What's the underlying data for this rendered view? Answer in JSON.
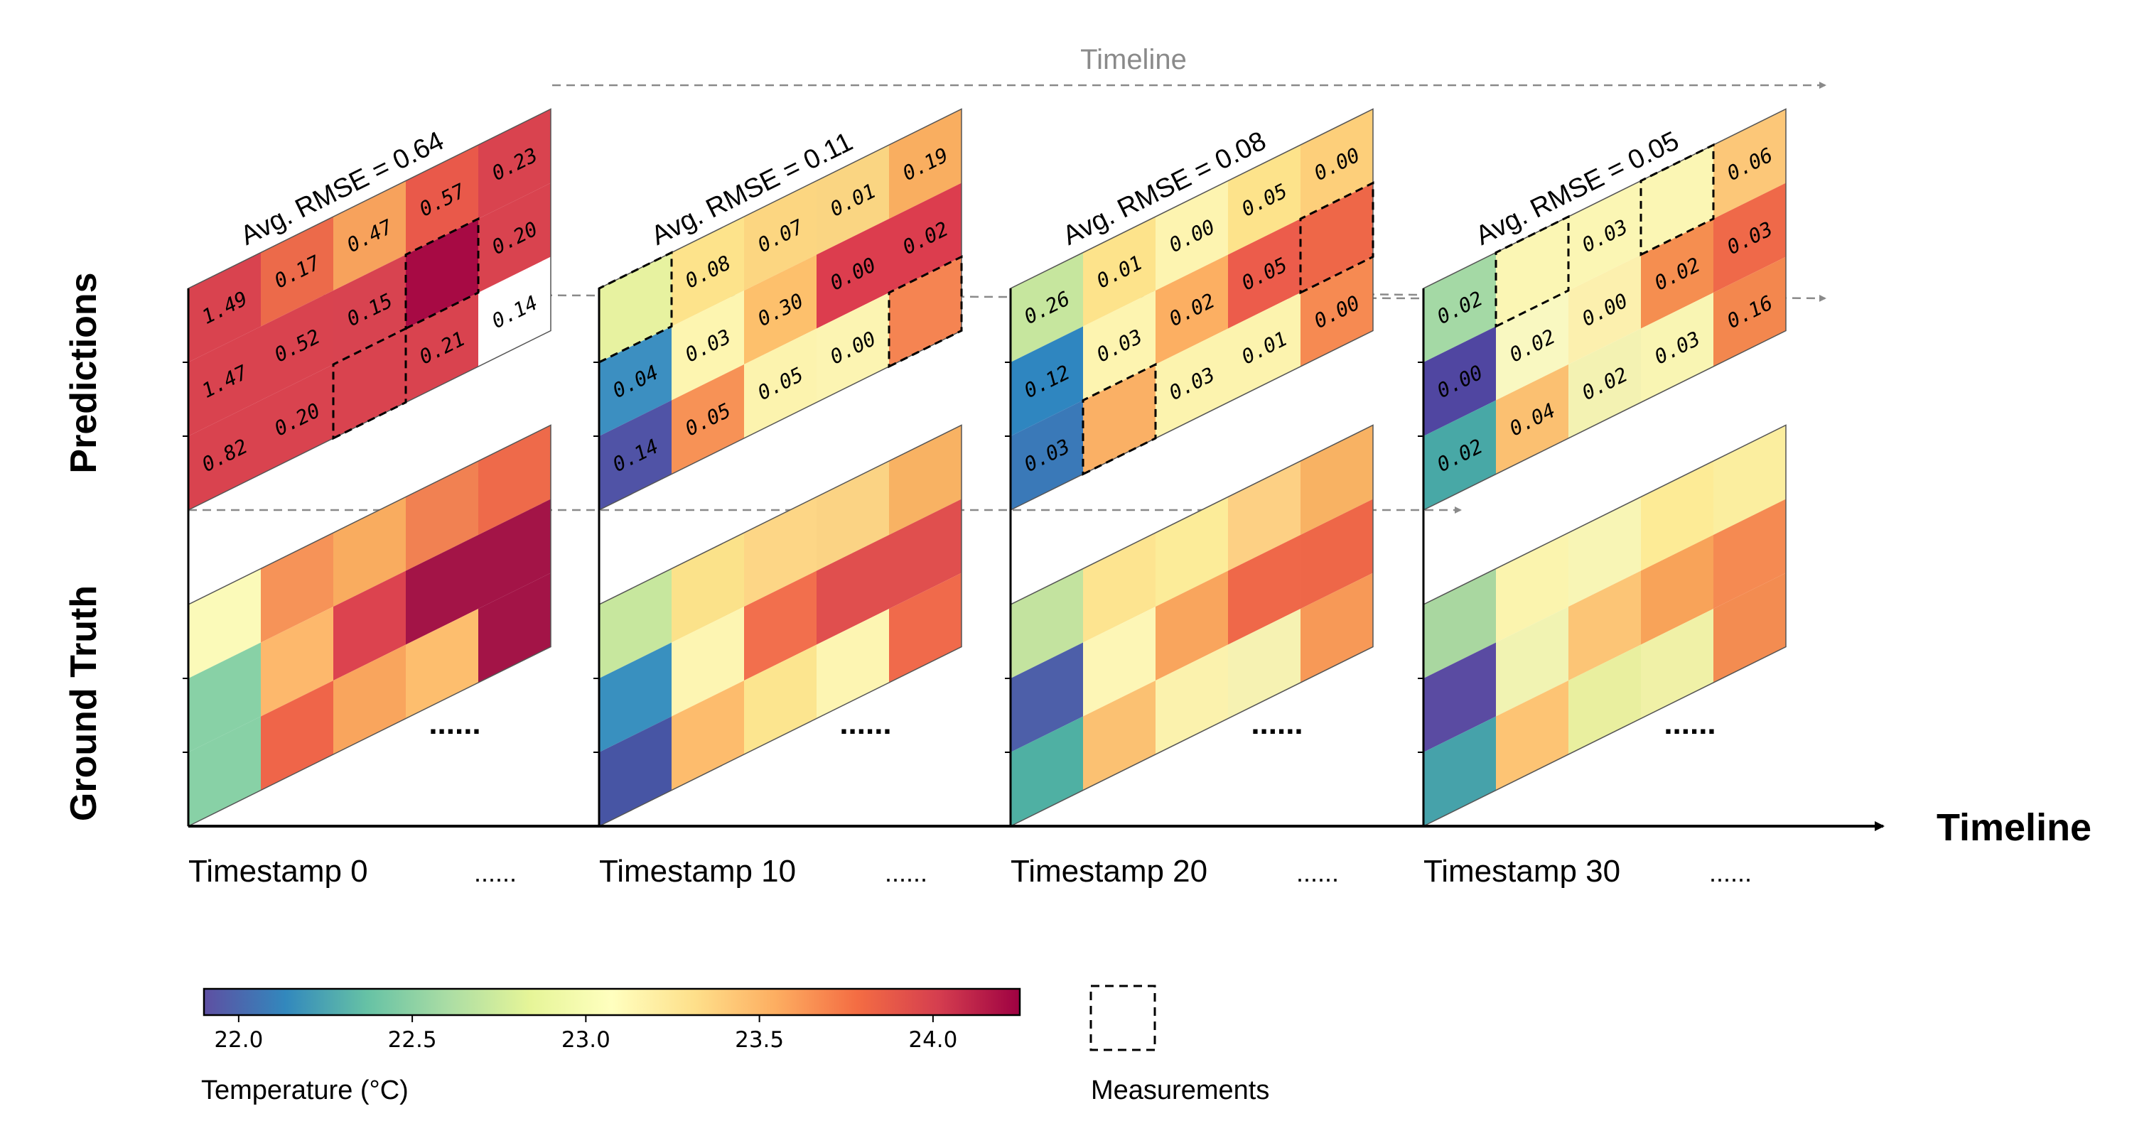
{
  "labels": {
    "predictions": "Predictions",
    "ground_truth": "Ground Truth",
    "timeline_main": "Timeline",
    "timeline_top": "Timeline",
    "ellipsis_gt": "......",
    "ellipsis_ts": "......",
    "colorbar_label": "Temperature (°C)",
    "measurements_label": "Measurements"
  },
  "colorbar": {
    "ticks": [
      "22.0",
      "22.5",
      "23.0",
      "23.5",
      "24.0"
    ],
    "tick_values": [
      22.0,
      22.5,
      23.0,
      23.5,
      24.0
    ],
    "min": 21.9,
    "max": 24.25,
    "colormap": [
      "#5e4fa2",
      "#3288bd",
      "#66c2a5",
      "#abdda4",
      "#e6f598",
      "#ffffbf",
      "#fee08b",
      "#fdae61",
      "#f46d43",
      "#d53e4f",
      "#9e0142"
    ]
  },
  "panels": [
    {
      "timestamp": "Timestamp 0",
      "rmse": "Avg. RMSE = 0.64",
      "pred_colors": [
        [
          "#d9434f",
          "#ec6a4a",
          "#f7a25c",
          "#e9594a",
          "#d9434f"
        ],
        [
          "#d9434f",
          "#d9434f",
          "#d84350",
          "#a70a44",
          "#d9434f"
        ],
        [
          "#d9434f",
          "#d9434f",
          "#d9434f",
          "#d9434f",
          null
        ]
      ],
      "pred_values": [
        [
          "1.49",
          "0.17",
          "0.47",
          "0.57",
          "0.23"
        ],
        [
          "1.47",
          "0.52",
          "0.15",
          "",
          "0.20"
        ],
        [
          "0.82",
          "0.20",
          "",
          "0.21",
          "0.14"
        ]
      ],
      "measured": [
        [
          1,
          3
        ],
        [
          2,
          2
        ]
      ],
      "gt_colors": [
        [
          "#fbfab9",
          "#f69358",
          "#f9ac5f",
          "#f18152",
          "#ee6a4a"
        ],
        [
          "#88d1a6",
          "#fdb86c",
          "#dc434f",
          "#a31447",
          "#a31447"
        ],
        [
          "#88d1a6",
          "#ef6549",
          "#f9a55d",
          "#fdbe6e",
          "#a31447"
        ]
      ]
    },
    {
      "timestamp": "Timestamp 10",
      "rmse": "Avg. RMSE = 0.11",
      "pred_colors": [
        [
          "#e7f2a0",
          "#fde38b",
          "#fcd681",
          "#fad582",
          "#f9ae60"
        ],
        [
          "#3c8fc1",
          "#fdf5b0",
          "#fdc06c",
          "#dc3d4e",
          "#dc3d4e"
        ],
        [
          "#5053a6",
          "#f79256",
          "#fcf3ae",
          "#fcf4b2",
          "#f58452"
        ]
      ],
      "pred_values": [
        [
          "",
          "0.08",
          "0.07",
          "0.01",
          "0.19"
        ],
        [
          "0.04",
          "0.03",
          "0.30",
          "0.00",
          "0.02"
        ],
        [
          "0.14",
          "0.05",
          "0.05",
          "0.00",
          ""
        ]
      ],
      "measured": [
        [
          0,
          0
        ],
        [
          2,
          4
        ]
      ],
      "gt_colors": [
        [
          "#c7e79e",
          "#fbe28a",
          "#fdd686",
          "#fbd384",
          "#f8b263"
        ],
        [
          "#3990bf",
          "#fdf5b2",
          "#f26f4d",
          "#e04f4e",
          "#e04f4e"
        ],
        [
          "#4755a4",
          "#fdbc6d",
          "#fce58f",
          "#fdf5b2",
          "#f06a4b"
        ]
      ]
    },
    {
      "timestamp": "Timestamp 20",
      "rmse": "Avg. RMSE = 0.08",
      "pred_colors": [
        [
          "#c6e69e",
          "#fde38b",
          "#fdf4b0",
          "#fde38b",
          "#fdcf7a"
        ],
        [
          "#2f86c0",
          "#fdf4b0",
          "#fcaf62",
          "#ec5c4b",
          "#ee6748"
        ],
        [
          "#3a79b8",
          "#fab065",
          "#fcf3ae",
          "#fcf3ae",
          "#f68a52"
        ]
      ],
      "pred_values": [
        [
          "0.26",
          "0.01",
          "0.00",
          "0.05",
          "0.00"
        ],
        [
          "0.12",
          "0.03",
          "0.02",
          "0.05",
          ""
        ],
        [
          "0.03",
          "",
          "0.03",
          "0.01",
          "0.00"
        ]
      ],
      "measured": [
        [
          1,
          4
        ],
        [
          2,
          1
        ]
      ],
      "gt_colors": [
        [
          "#c3e39f",
          "#fde490",
          "#fcec99",
          "#fdd084",
          "#f8b263"
        ],
        [
          "#4d5fa9",
          "#fdf6b6",
          "#f9a55d",
          "#ef6849",
          "#ee6748"
        ],
        [
          "#4fb0a3",
          "#fbc172",
          "#fbf2ad",
          "#f6f2b2",
          "#f79957"
        ]
      ]
    },
    {
      "timestamp": "Timestamp 30",
      "rmse": "Avg. RMSE = 0.05",
      "pred_colors": [
        [
          "#a4d9a5",
          "#fbf6b4",
          "#fbf6b4",
          "#fbf6b4",
          "#fcc778"
        ],
        [
          "#5046a1",
          "#f9f8c1",
          "#fcf0ae",
          "#f58e50",
          "#ef6949"
        ],
        [
          "#48a8a6",
          "#fbc071",
          "#f3f2b2",
          "#f9f5b3",
          "#f3874e"
        ]
      ],
      "pred_values": [
        [
          "0.02",
          "",
          "0.03",
          "",
          "0.06"
        ],
        [
          "0.00",
          "0.02",
          "0.00",
          "0.02",
          "0.03"
        ],
        [
          "0.02",
          "0.04",
          "0.02",
          "0.03",
          "0.16"
        ]
      ],
      "measured": [
        [
          0,
          1
        ],
        [
          0,
          3
        ]
      ],
      "gt_colors": [
        [
          "#a9d7a0",
          "#fbf4ae",
          "#f8f5b5",
          "#fdeb96",
          "#fbee9f"
        ],
        [
          "#5a4ba2",
          "#f1f3b2",
          "#fcc576",
          "#f8a359",
          "#f58a52"
        ],
        [
          "#46a2aa",
          "#fdc474",
          "#e9ef9f",
          "#f0f1a7",
          "#f38c51"
        ]
      ]
    }
  ]
}
